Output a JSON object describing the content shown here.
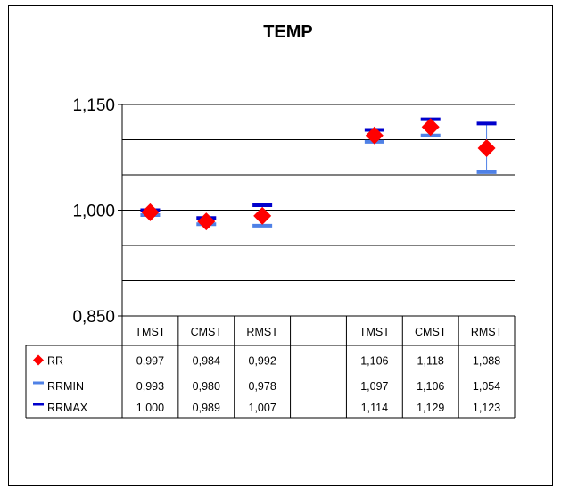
{
  "chart_data": {
    "type": "scatter",
    "title": "TEMP",
    "ylim": [
      0.85,
      1.15
    ],
    "y_ticks": [
      "1,150",
      "1,000",
      "0,850"
    ],
    "y_tick_values": [
      1.15,
      1.0,
      0.85
    ],
    "gridline_values": [
      1.15,
      1.1,
      1.05,
      1.0,
      0.95,
      0.9
    ],
    "categories": [
      "TMST",
      "CMST",
      "RMST",
      "",
      "TMST",
      "CMST",
      "RMST"
    ],
    "series": [
      {
        "name": "RR",
        "marker": "diamond",
        "color": "#ff0000",
        "values": [
          0.997,
          0.984,
          0.992,
          null,
          1.106,
          1.118,
          1.088
        ],
        "labels": [
          "0,997",
          "0,984",
          "0,992",
          "",
          "1,106",
          "1,118",
          "1,088"
        ]
      },
      {
        "name": "RRMIN",
        "marker": "dash",
        "color": "#4f81e6",
        "values": [
          0.993,
          0.98,
          0.978,
          null,
          1.097,
          1.106,
          1.054
        ],
        "labels": [
          "0,993",
          "0,980",
          "0,978",
          "",
          "1,097",
          "1,106",
          "1,054"
        ]
      },
      {
        "name": "RRMAX",
        "marker": "dash",
        "color": "#0000cc",
        "values": [
          1.0,
          0.989,
          1.007,
          null,
          1.114,
          1.129,
          1.123
        ],
        "labels": [
          "1,000",
          "0,989",
          "1,007",
          "",
          "1,114",
          "1,129",
          "1,123"
        ]
      }
    ],
    "grid": true,
    "legend": "data-table-left"
  }
}
